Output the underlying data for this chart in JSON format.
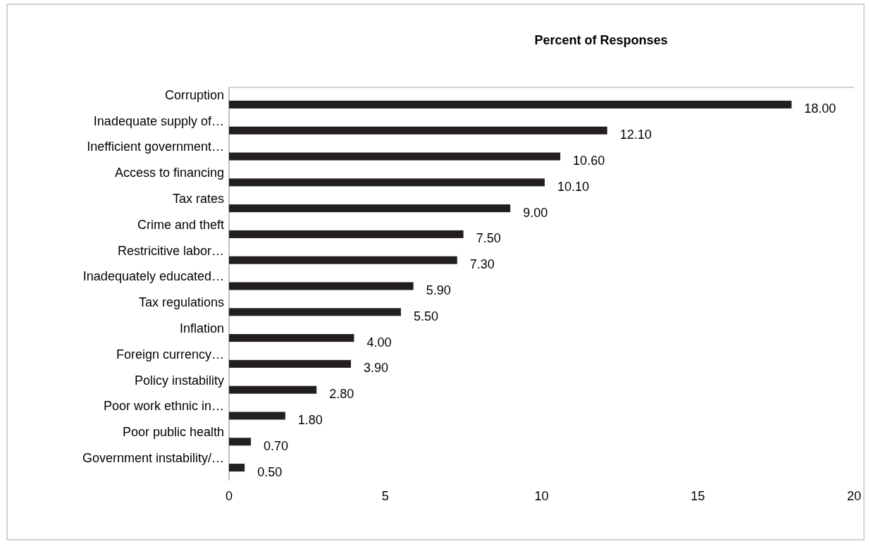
{
  "chart_data": {
    "type": "bar",
    "orientation": "horizontal",
    "title": "Percent of Responses",
    "categories": [
      "Corruption",
      "Inadequate supply of…",
      "Inefficient government…",
      "Access to financing",
      "Tax rates",
      "Crime and theft",
      "Restricitive labor…",
      "Inadequately educated…",
      "Tax regulations",
      "Inflation",
      "Foreign currency…",
      "Policy instability",
      "Poor work ethnic in…",
      "Poor public health",
      "Government instability/…"
    ],
    "values": [
      18.0,
      12.1,
      10.6,
      10.1,
      9.0,
      7.5,
      7.3,
      5.9,
      5.5,
      4.0,
      3.9,
      2.8,
      1.8,
      0.7,
      0.5
    ],
    "value_labels": [
      "18.00",
      "12.10",
      "10.60",
      "10.10",
      "9.00",
      "7.50",
      "7.30",
      "5.90",
      "5.50",
      "4.00",
      "3.90",
      "2.80",
      "1.80",
      "0.70",
      "0.50"
    ],
    "color": "#231f20",
    "xlim": [
      0,
      20
    ],
    "xticks": [
      0,
      5,
      10,
      15,
      20
    ]
  }
}
